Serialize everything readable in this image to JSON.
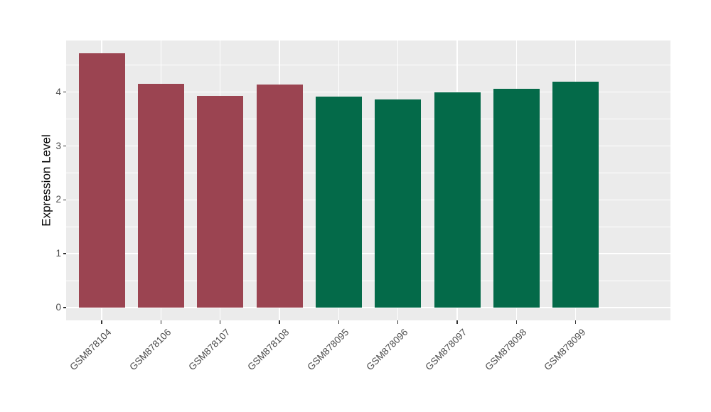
{
  "chart_data": {
    "type": "bar",
    "title": "",
    "xlabel": "",
    "ylabel": "Expression Level",
    "categories": [
      "GSM878104",
      "GSM878106",
      "GSM878107",
      "GSM878108",
      "GSM878095",
      "GSM878096",
      "GSM878097",
      "GSM878098",
      "GSM878099"
    ],
    "values": [
      4.72,
      4.16,
      3.93,
      4.14,
      3.92,
      3.86,
      3.99,
      4.06,
      4.2
    ],
    "bar_colors": [
      "#9B4451",
      "#9B4451",
      "#9B4451",
      "#9B4451",
      "#046A49",
      "#046A49",
      "#046A49",
      "#046A49",
      "#046A49"
    ],
    "groups": [
      {
        "color": "#9B4451",
        "members": [
          "GSM878104",
          "GSM878106",
          "GSM878107",
          "GSM878108"
        ]
      },
      {
        "color": "#046A49",
        "members": [
          "GSM878095",
          "GSM878096",
          "GSM878097",
          "GSM878098",
          "GSM878099"
        ]
      }
    ],
    "y_ticks": [
      0,
      1,
      2,
      3,
      4
    ],
    "y_minor_ticks": [
      0.5,
      1.5,
      2.5,
      3.5,
      4.5
    ],
    "ylim": [
      -0.24,
      4.96
    ],
    "x_tick_label_angle": 45,
    "grid": true,
    "legend": "none",
    "colors": {
      "panel_background": "#EBEBEB",
      "grid_lines": "#FFFFFF",
      "tick_marks": "#333333",
      "tick_labels": "#4D4D4D",
      "axis_title": "#000000",
      "figure_background": "#FFFFFF"
    }
  }
}
